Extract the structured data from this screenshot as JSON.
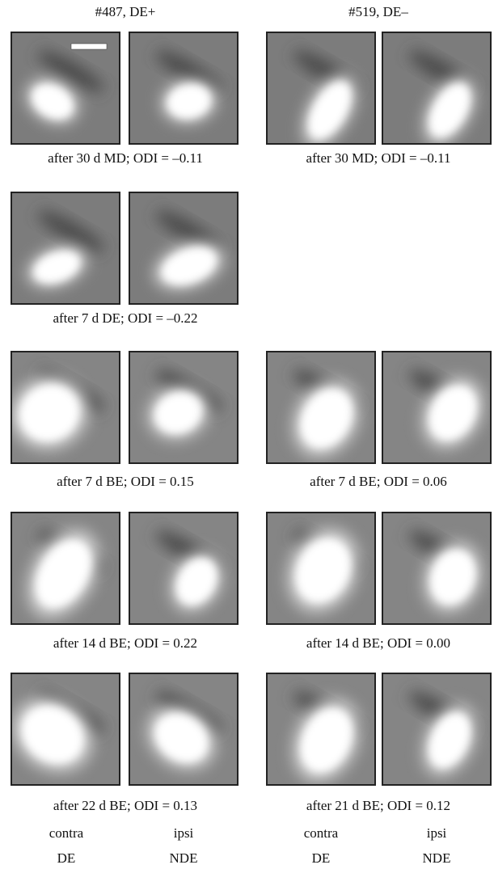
{
  "headers": [
    "#487, DE+",
    "#519, DE–"
  ],
  "rows": [
    {
      "left": "after 30 d MD; ODI = –0.11",
      "right": "after 30 MD; ODI = –0.11"
    },
    {
      "left": "after 7 d DE; ODI = –0.22"
    },
    {
      "left": "after 7 d BE; ODI = 0.15",
      "right": "after 7 d BE; ODI = 0.06"
    },
    {
      "left": "after 14 d BE; ODI = 0.22",
      "right": "after 14 d BE; ODI = 0.00"
    },
    {
      "left": "after 22 d BE; ODI = 0.13",
      "right": "after 21 d BE; ODI = 0.12"
    }
  ],
  "column_labels": [
    "contra",
    "ipsi",
    "contra",
    "ipsi"
  ],
  "eye_labels": [
    "DE",
    "NDE",
    "DE",
    "NDE"
  ]
}
